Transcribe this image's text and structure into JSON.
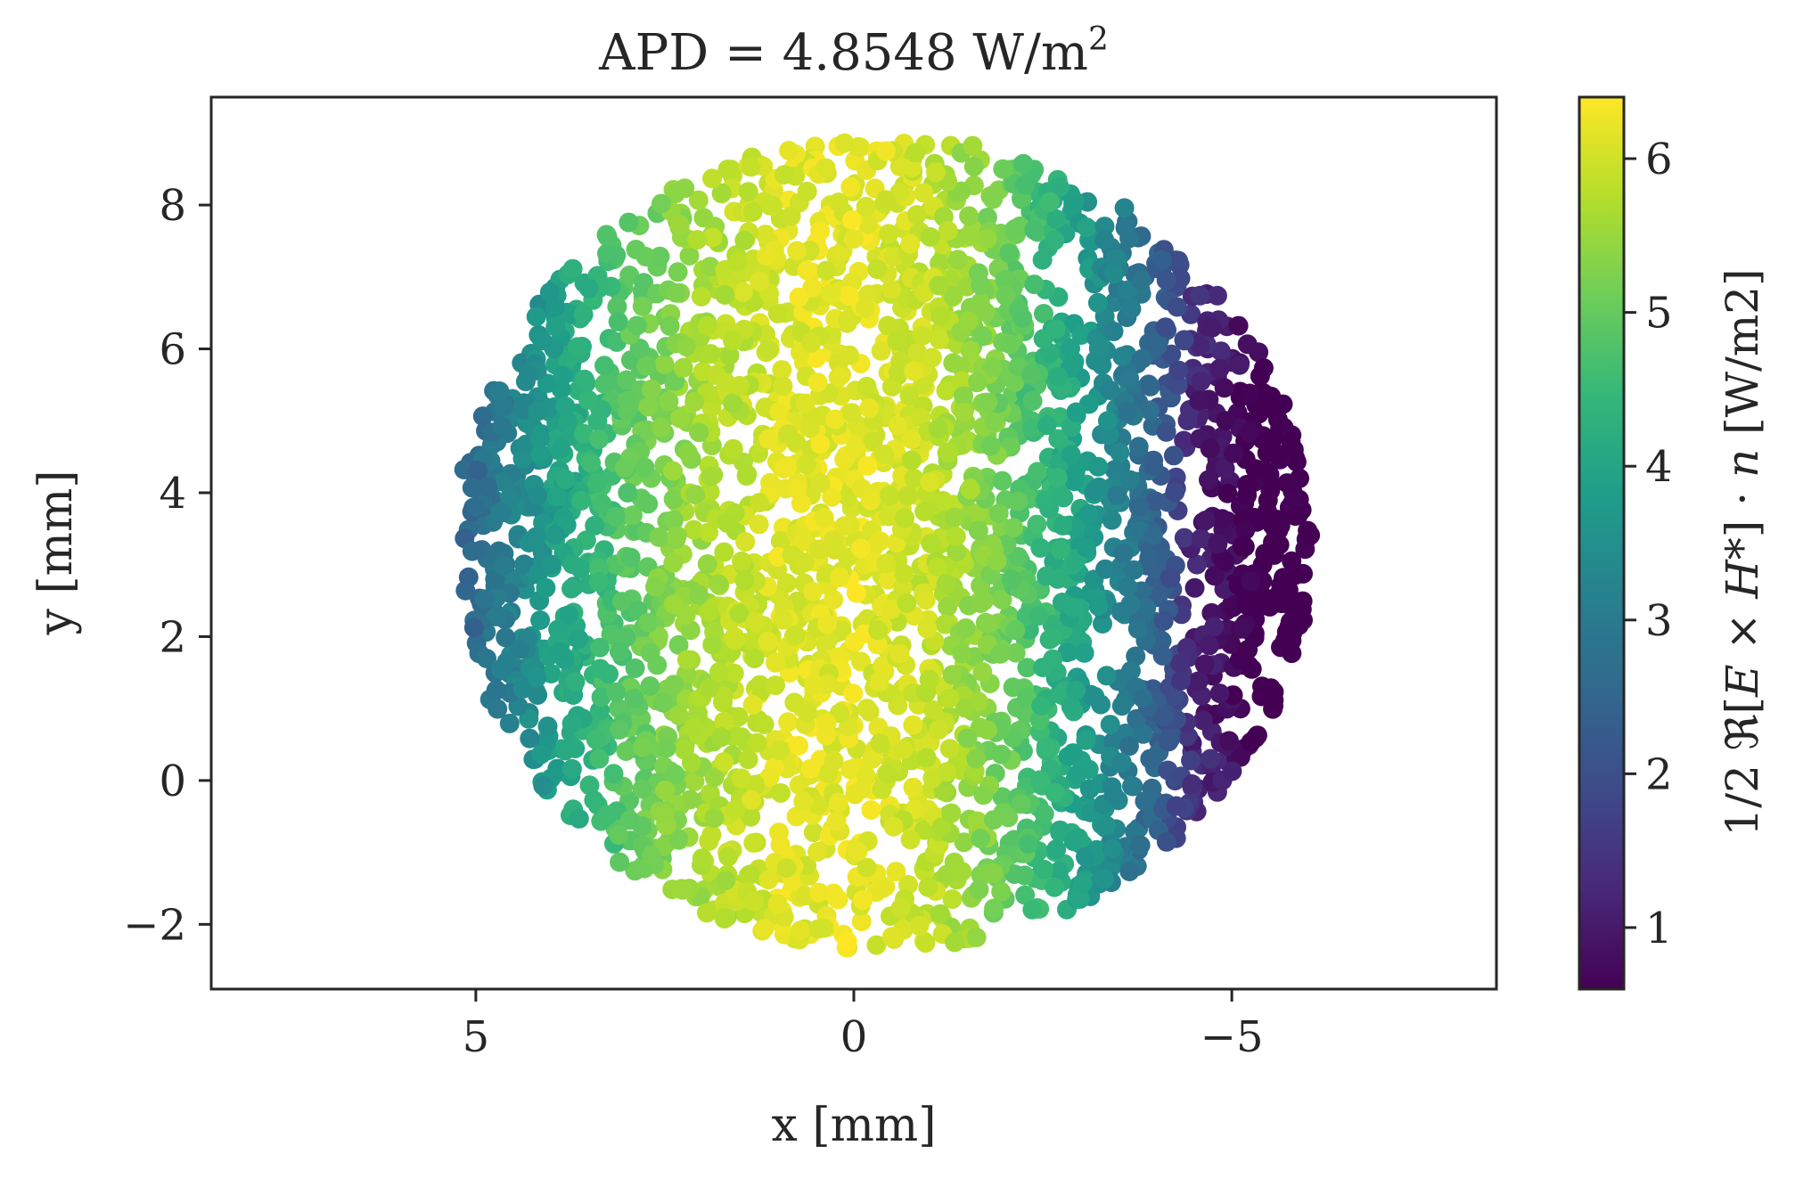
{
  "chart_data": {
    "type": "scatter",
    "title_main": "APD = 4.8548 W/m",
    "title_sup": "2",
    "xlabel": "x [mm]",
    "ylabel": "y [mm]",
    "xlim": [
      8.5,
      -8.5
    ],
    "ylim": [
      -2.9,
      9.5
    ],
    "x_ticks": [
      5,
      0,
      -5
    ],
    "x_tick_labels": [
      "5",
      "0",
      "−5"
    ],
    "y_ticks": [
      -2,
      0,
      2,
      4,
      6,
      8
    ],
    "y_tick_labels": [
      "−2",
      "0",
      "2",
      "4",
      "6",
      "8"
    ],
    "grid": false,
    "colormap": "viridis",
    "colormap_stops": [
      "#440154",
      "#482878",
      "#3e4a89",
      "#31688e",
      "#26828e",
      "#1f9e89",
      "#35b779",
      "#6ece58",
      "#b5de2b",
      "#fde725"
    ],
    "disk": {
      "center_x": -0.4,
      "center_y": 3.3,
      "radius_mm": 5.65
    },
    "field_profile_x": [
      6.0,
      5.0,
      4.0,
      3.0,
      2.0,
      1.0,
      0.0,
      -1.0,
      -2.0,
      -3.0,
      -4.0,
      -4.5,
      -5.3
    ],
    "field_profile_value": [
      1.7,
      2.6,
      3.8,
      4.9,
      5.6,
      6.1,
      6.2,
      5.9,
      5.1,
      3.9,
      2.4,
      1.4,
      0.7
    ],
    "colorbar": {
      "vmin": 0.6,
      "vmax": 6.4,
      "ticks": [
        1,
        2,
        3,
        4,
        5,
        6
      ],
      "tick_labels": [
        "1",
        "2",
        "3",
        "4",
        "5",
        "6"
      ],
      "label_pre": "1/2 ℜ[",
      "label_E": "E",
      "label_times": " × ",
      "label_H": "H",
      "label_post": "*] · ",
      "label_n": "n",
      "label_unit": " [W/m2]"
    }
  }
}
